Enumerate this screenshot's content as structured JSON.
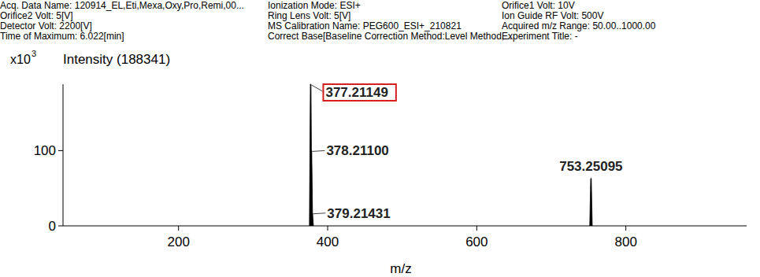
{
  "chart_data": {
    "type": "stem",
    "info": [
      [
        "Acq. Data Name: 120914_EL,Eti,Mexa,Oxy,Pro,Remi,00...",
        "Ionization Mode: ESI+",
        "Orifice1 Volt: 10V"
      ],
      [
        "Orifice2 Volt: 5[V]",
        "Ring Lens Volt: 5[V]",
        "Ion Guide RF Volt: 500V"
      ],
      [
        "Detector Volt: 2200[V]",
        "MS Calibration Name: PEG600_ESI+_210821",
        "Acquired m/z Range: 50.00..1000.00"
      ],
      [
        "Time of Maximum: 6.022[min]",
        "Correct Base[Baseline Correction Method:Level Method,...",
        "Experiment Title: -"
      ]
    ],
    "y_scale_label": {
      "base": "x10",
      "exponent": "3"
    },
    "y_label": "Intensity (188341)",
    "x_label": "m/z",
    "x": [
      377.21149,
      378.211,
      379.21431,
      753.25095
    ],
    "x_labels": [
      "377.21149",
      "378.21100",
      "379.21431",
      "753.25095"
    ],
    "highlighted": [
      true,
      false,
      false,
      false
    ],
    "values": [
      188.341,
      100,
      17,
      63
    ],
    "color": "#000000",
    "xlim": [
      45,
      962
    ],
    "ylim": [
      0,
      188.341
    ],
    "xticks": [
      200,
      400,
      600,
      800
    ],
    "yticks": [
      0,
      100
    ],
    "data_labels": true,
    "grid": false
  }
}
